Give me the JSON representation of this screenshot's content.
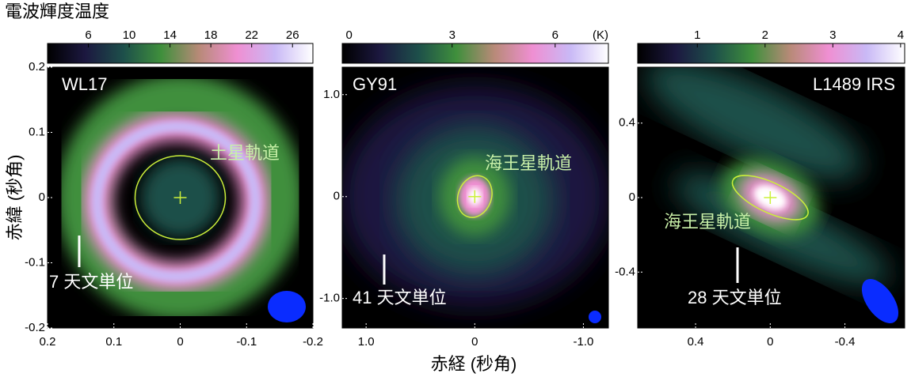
{
  "colorbar_title": "電波輝度温度",
  "y_label": "赤緯 (秒角)",
  "x_label": "赤経 (秒角)",
  "colormap": [
    "#000000",
    "#1c1840",
    "#1d4f4a",
    "#3f8f3c",
    "#b88a78",
    "#ef8fd2",
    "#c9b9f6",
    "#ffffff"
  ],
  "orbit_color": "#ccf03a",
  "beam_color": "#0a2cff",
  "chart_data": [
    {
      "type": "image",
      "title": "WL17",
      "colorbar_lim": [
        2,
        28
      ],
      "colorbar_ticks": [
        6,
        10,
        14,
        18,
        22,
        26
      ],
      "xlim": [
        0.2,
        -0.2
      ],
      "xticks": [
        0.2,
        0.1,
        0,
        -0.1,
        -0.2
      ],
      "ylim": [
        -0.2,
        0.2
      ],
      "yticks": [
        -0.2,
        -0.1,
        0,
        0.1,
        0.2
      ],
      "orbit_label": "土星軌道",
      "scale_label": "7 天文単位"
    },
    {
      "type": "image",
      "title": "GY91",
      "colorbar_lim": [
        -0.2,
        7.55
      ],
      "colorbar_ticks": [
        0,
        3,
        6
      ],
      "colorbar_unit": "(K)",
      "xlim": [
        1.22,
        -1.23
      ],
      "xticks": [
        {
          "value": 1.0,
          "label": "1.0"
        },
        0,
        {
          "value": -1.0,
          "label": "-1.0"
        }
      ],
      "ylim": [
        -1.29,
        1.27
      ],
      "yticks": [
        {
          "value": 1.0,
          "label": "1.0"
        },
        0,
        {
          "value": -1.0,
          "label": "-1.0"
        }
      ],
      "orbit_label": "海王星軌道",
      "scale_label": "41 天文単位"
    },
    {
      "type": "image",
      "title": "L1489 IRS",
      "colorbar_lim": [
        0.12,
        4.06
      ],
      "colorbar_ticks": [
        1,
        2,
        3,
        4
      ],
      "xlim": [
        0.71,
        -0.72
      ],
      "xticks": [
        0.4,
        0,
        -0.4
      ],
      "ylim": [
        -0.7,
        0.7
      ],
      "yticks": [
        -0.4,
        0,
        0.4
      ],
      "orbit_label": "海王星軌道",
      "scale_label": "28 天文単位"
    }
  ]
}
